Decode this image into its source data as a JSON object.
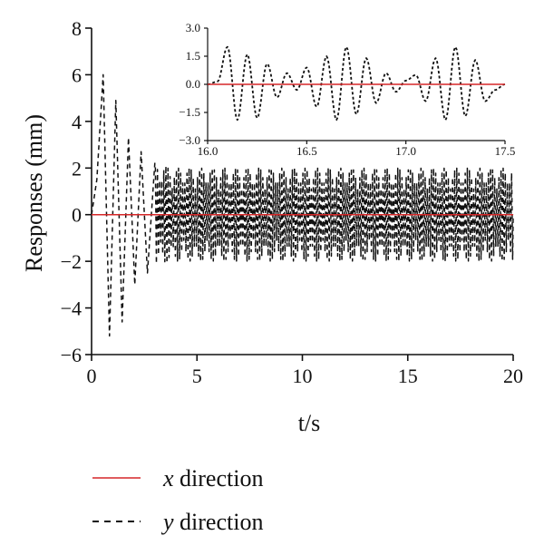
{
  "chart_data": [
    {
      "type": "line",
      "role": "main",
      "xlabel": "t/s",
      "ylabel": "Responses (mm)",
      "xlim": [
        0,
        20
      ],
      "ylim": [
        -6,
        8
      ],
      "xticks": [
        0,
        5,
        10,
        15,
        20
      ],
      "yticks": [
        -6,
        -4,
        -2,
        0,
        2,
        4,
        6,
        8
      ],
      "xtick_labels": [
        "0",
        "5",
        "10",
        "15",
        "20"
      ],
      "ytick_labels": [
        "−6",
        "−4",
        "−2",
        "0",
        "2",
        "4",
        "6",
        "8"
      ],
      "grid": false,
      "series": [
        {
          "name": "x direction",
          "style": "solid",
          "color": "#d62728",
          "x": [
            0,
            20
          ],
          "y": [
            0,
            0
          ]
        },
        {
          "name": "y direction",
          "style": "dashed",
          "color": "#111111",
          "x": [
            0,
            0.25,
            0.55,
            0.85,
            1.15,
            1.45,
            1.75,
            2.05,
            2.35,
            2.65,
            3.0,
            4.0,
            6.0,
            8.0,
            10.0,
            12.0,
            14.0,
            16.0,
            18.0,
            20.0
          ],
          "y": [
            0,
            1.5,
            6.0,
            -5.2,
            4.9,
            -4.6,
            3.3,
            -3.0,
            2.7,
            -2.5,
            2.2,
            2.0,
            2.0,
            2.0,
            2.0,
            2.0,
            2.0,
            2.0,
            2.0,
            2.0
          ],
          "envelope_min": -2.0
        }
      ]
    },
    {
      "type": "line",
      "role": "inset",
      "xlim": [
        16.0,
        17.5
      ],
      "ylim": [
        -3.0,
        3.0
      ],
      "xticks": [
        16.0,
        16.5,
        17.0,
        17.5
      ],
      "yticks": [
        -3.0,
        -1.5,
        0.0,
        1.5,
        3.0
      ],
      "xtick_labels": [
        "16.0",
        "16.5",
        "17.0",
        "17.5"
      ],
      "ytick_labels": [
        "−3.0",
        "−1.5",
        "0.0",
        "1.5",
        "3.0"
      ],
      "grid": false,
      "series": [
        {
          "name": "x direction",
          "style": "solid",
          "color": "#d62728",
          "x": [
            16.0,
            17.5
          ],
          "y": [
            0,
            0
          ]
        },
        {
          "name": "y direction",
          "style": "dashed",
          "color": "#111111",
          "x": [
            16.0,
            16.05,
            16.1,
            16.15,
            16.2,
            16.25,
            16.3,
            16.35,
            16.4,
            16.45,
            16.5,
            16.55,
            16.6,
            16.65,
            16.7,
            16.75,
            16.8,
            16.85,
            16.9,
            16.95,
            17.0,
            17.05,
            17.1,
            17.15,
            17.2,
            17.25,
            17.3,
            17.35,
            17.4,
            17.45,
            17.5
          ],
          "y": [
            0.0,
            0.15,
            2.0,
            -1.9,
            1.6,
            -1.8,
            1.1,
            -0.7,
            0.6,
            -0.3,
            0.9,
            -1.2,
            1.5,
            -1.9,
            2.0,
            -1.6,
            1.4,
            -1.0,
            0.6,
            -0.4,
            0.2,
            0.5,
            -0.9,
            1.4,
            -1.9,
            2.0,
            -1.7,
            1.3,
            -0.9,
            -0.3,
            0.0
          ],
          "frequency_hz": 10
        }
      ]
    }
  ],
  "legend": {
    "placement": "bottom-left",
    "items": [
      {
        "symbol": "x",
        "rest": " direction",
        "style": "solid",
        "color": "#d62728"
      },
      {
        "symbol": "y",
        "rest": " direction",
        "style": "dashed",
        "color": "#111111"
      }
    ]
  }
}
